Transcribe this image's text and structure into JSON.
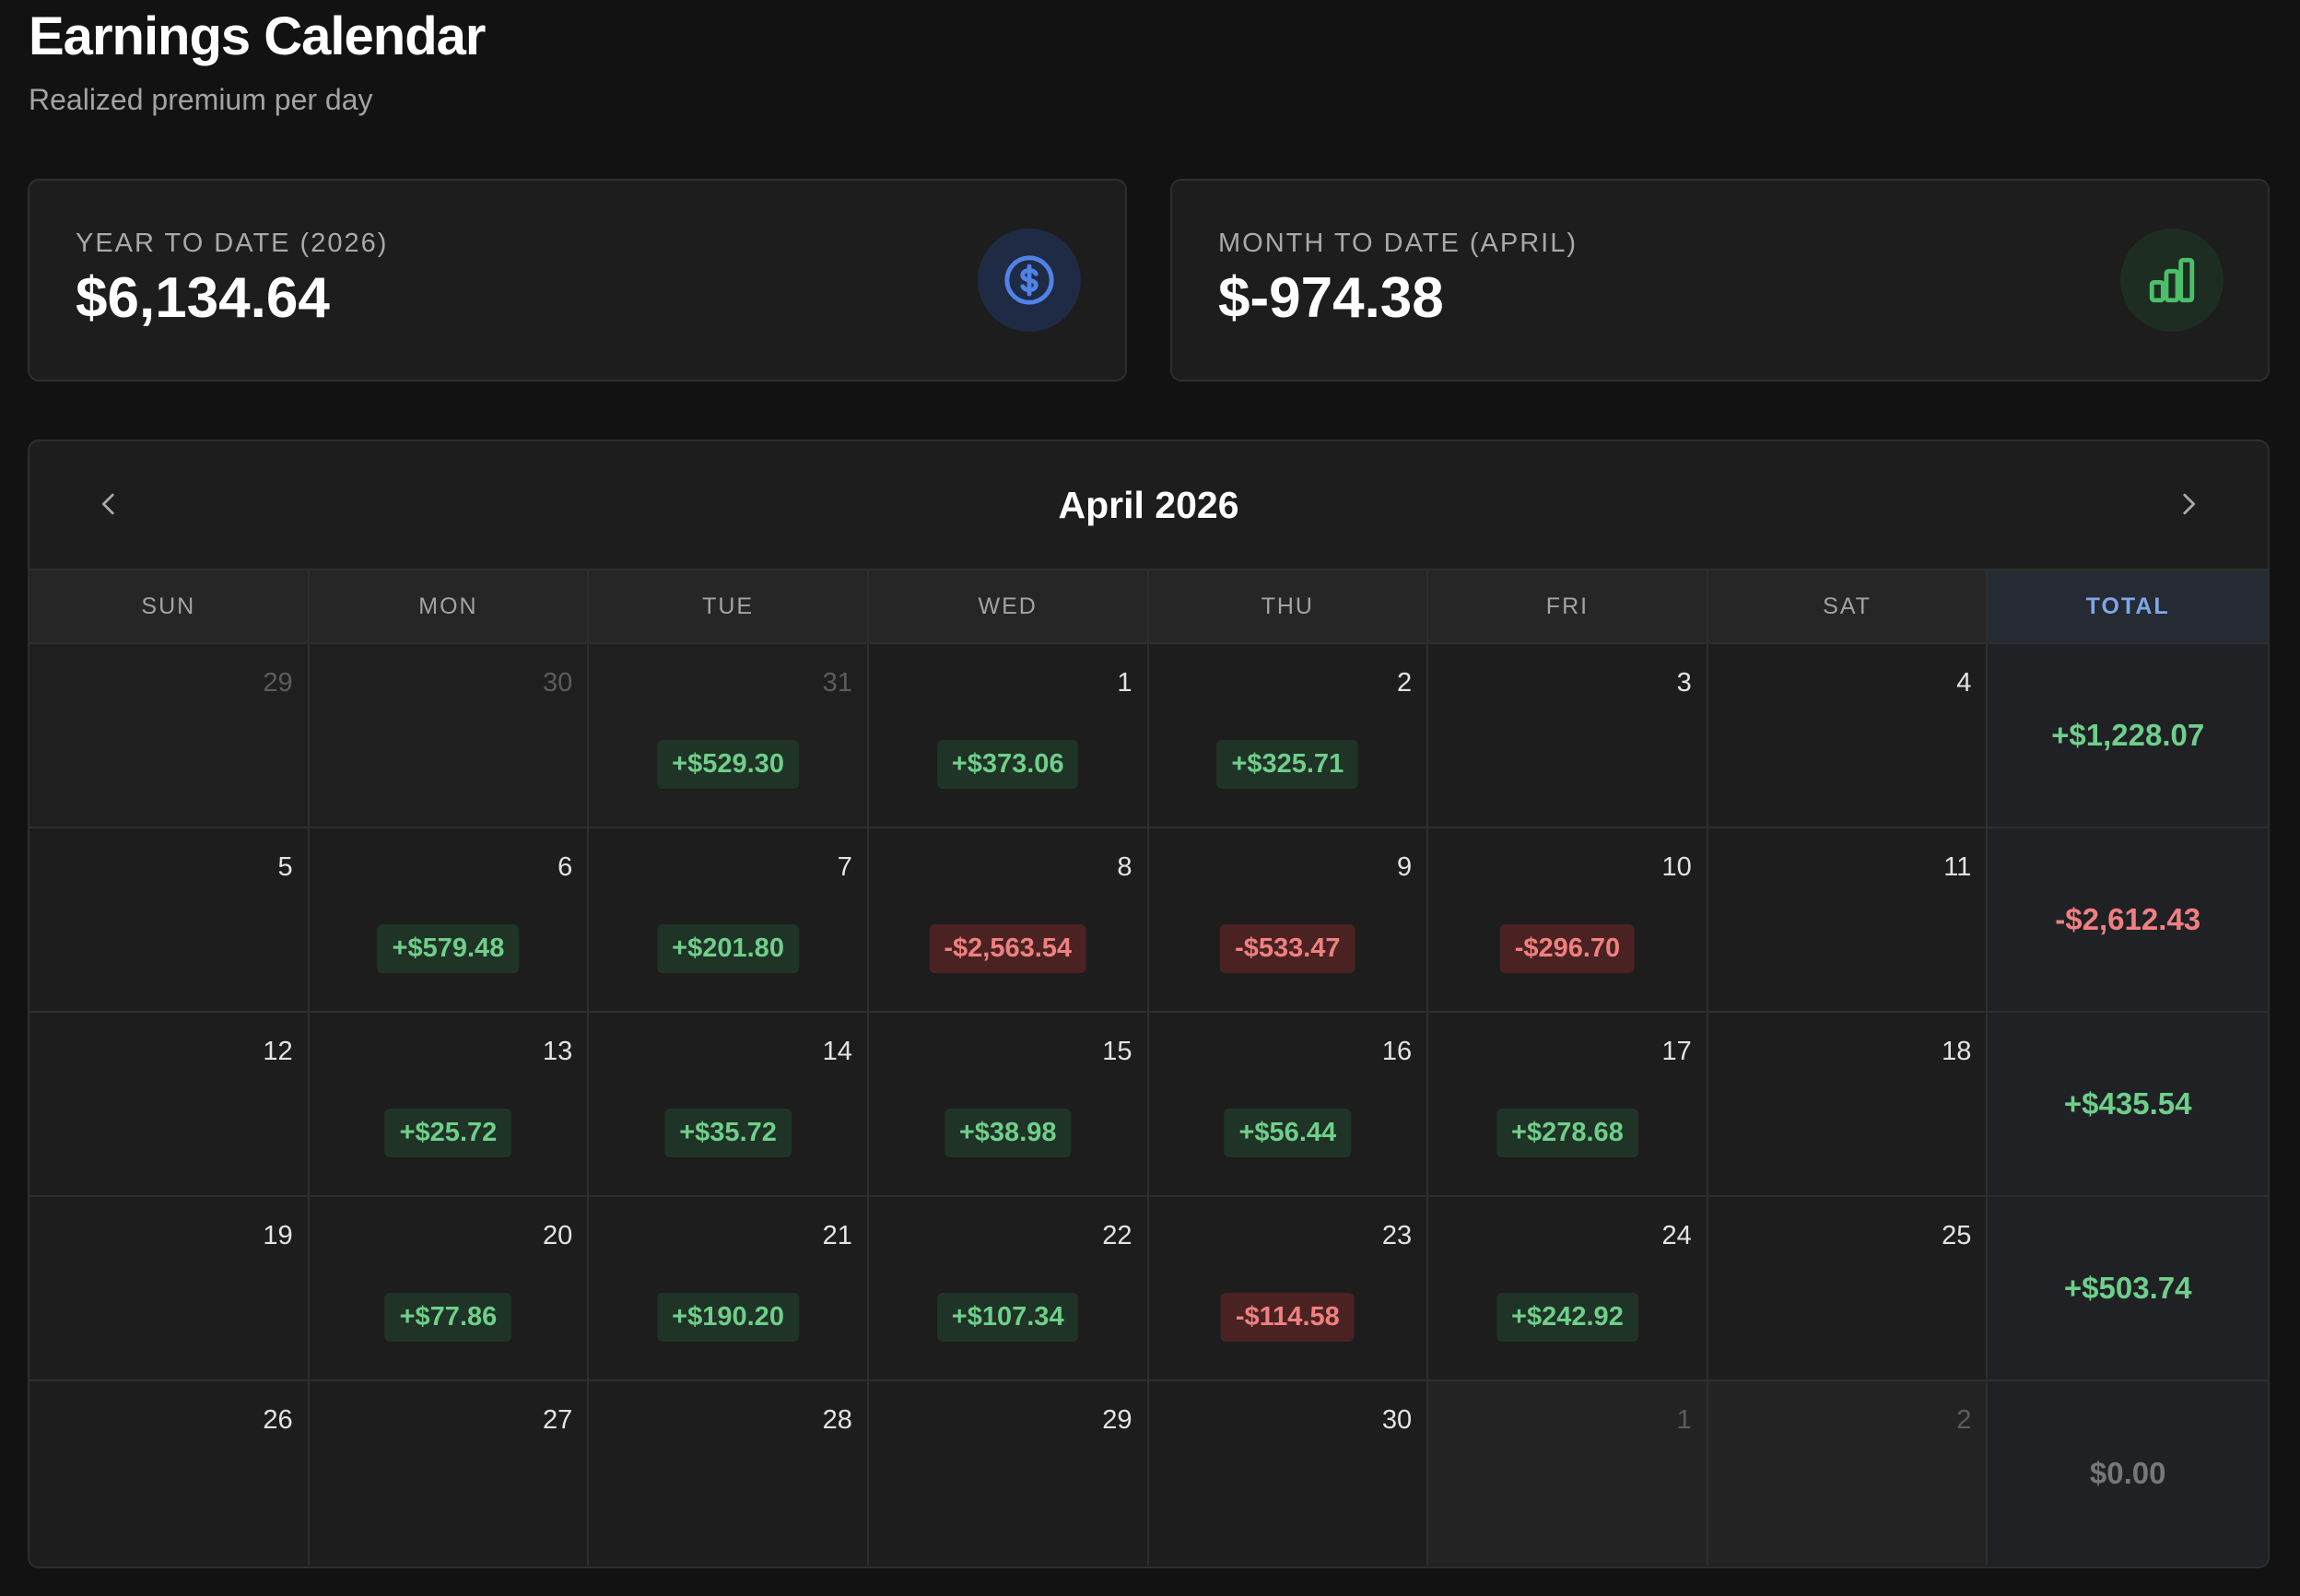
{
  "header": {
    "title": "Earnings Calendar",
    "subtitle": "Realized premium per day"
  },
  "stats": {
    "ytd": {
      "label": "YEAR TO DATE (2026)",
      "value": "$6,134.64",
      "icon": "dollar-circle-icon",
      "accent": "#4f83e8"
    },
    "mtd": {
      "label": "MONTH TO DATE (APRIL)",
      "value": "$-974.38",
      "icon": "bar-chart-icon",
      "accent": "#4cbf6a"
    }
  },
  "calendar": {
    "month_label": "April 2026",
    "prev_icon": "chevron-left-icon",
    "next_icon": "chevron-right-icon",
    "weekdays": [
      "SUN",
      "MON",
      "TUE",
      "WED",
      "THU",
      "FRI",
      "SAT",
      "TOTAL"
    ],
    "weeks": [
      {
        "days": [
          {
            "day": "29",
            "other": true,
            "amount": ""
          },
          {
            "day": "30",
            "other": true,
            "amount": ""
          },
          {
            "day": "31",
            "other": true,
            "amount": "+$529.30",
            "sign": "pos"
          },
          {
            "day": "1",
            "amount": "+$373.06",
            "sign": "pos"
          },
          {
            "day": "2",
            "amount": "+$325.71",
            "sign": "pos"
          },
          {
            "day": "3",
            "amount": ""
          },
          {
            "day": "4",
            "amount": ""
          }
        ],
        "total": "+$1,228.07",
        "total_sign": "pos"
      },
      {
        "days": [
          {
            "day": "5",
            "amount": ""
          },
          {
            "day": "6",
            "amount": "+$579.48",
            "sign": "pos"
          },
          {
            "day": "7",
            "amount": "+$201.80",
            "sign": "pos"
          },
          {
            "day": "8",
            "amount": "-$2,563.54",
            "sign": "neg"
          },
          {
            "day": "9",
            "amount": "-$533.47",
            "sign": "neg"
          },
          {
            "day": "10",
            "amount": "-$296.70",
            "sign": "neg"
          },
          {
            "day": "11",
            "amount": ""
          }
        ],
        "total": "-$2,612.43",
        "total_sign": "neg"
      },
      {
        "days": [
          {
            "day": "12",
            "amount": ""
          },
          {
            "day": "13",
            "amount": "+$25.72",
            "sign": "pos"
          },
          {
            "day": "14",
            "amount": "+$35.72",
            "sign": "pos"
          },
          {
            "day": "15",
            "amount": "+$38.98",
            "sign": "pos"
          },
          {
            "day": "16",
            "amount": "+$56.44",
            "sign": "pos"
          },
          {
            "day": "17",
            "amount": "+$278.68",
            "sign": "pos"
          },
          {
            "day": "18",
            "amount": ""
          }
        ],
        "total": "+$435.54",
        "total_sign": "pos"
      },
      {
        "days": [
          {
            "day": "19",
            "amount": ""
          },
          {
            "day": "20",
            "amount": "+$77.86",
            "sign": "pos"
          },
          {
            "day": "21",
            "amount": "+$190.20",
            "sign": "pos"
          },
          {
            "day": "22",
            "amount": "+$107.34",
            "sign": "pos"
          },
          {
            "day": "23",
            "amount": "-$114.58",
            "sign": "neg"
          },
          {
            "day": "24",
            "amount": "+$242.92",
            "sign": "pos"
          },
          {
            "day": "25",
            "amount": ""
          }
        ],
        "total": "+$503.74",
        "total_sign": "pos"
      },
      {
        "days": [
          {
            "day": "26",
            "amount": ""
          },
          {
            "day": "27",
            "amount": ""
          },
          {
            "day": "28",
            "amount": ""
          },
          {
            "day": "29",
            "amount": ""
          },
          {
            "day": "30",
            "amount": ""
          },
          {
            "day": "1",
            "other_next": true,
            "amount": ""
          },
          {
            "day": "2",
            "other_next": true,
            "amount": ""
          }
        ],
        "total": "$0.00",
        "total_sign": "zero"
      }
    ]
  }
}
